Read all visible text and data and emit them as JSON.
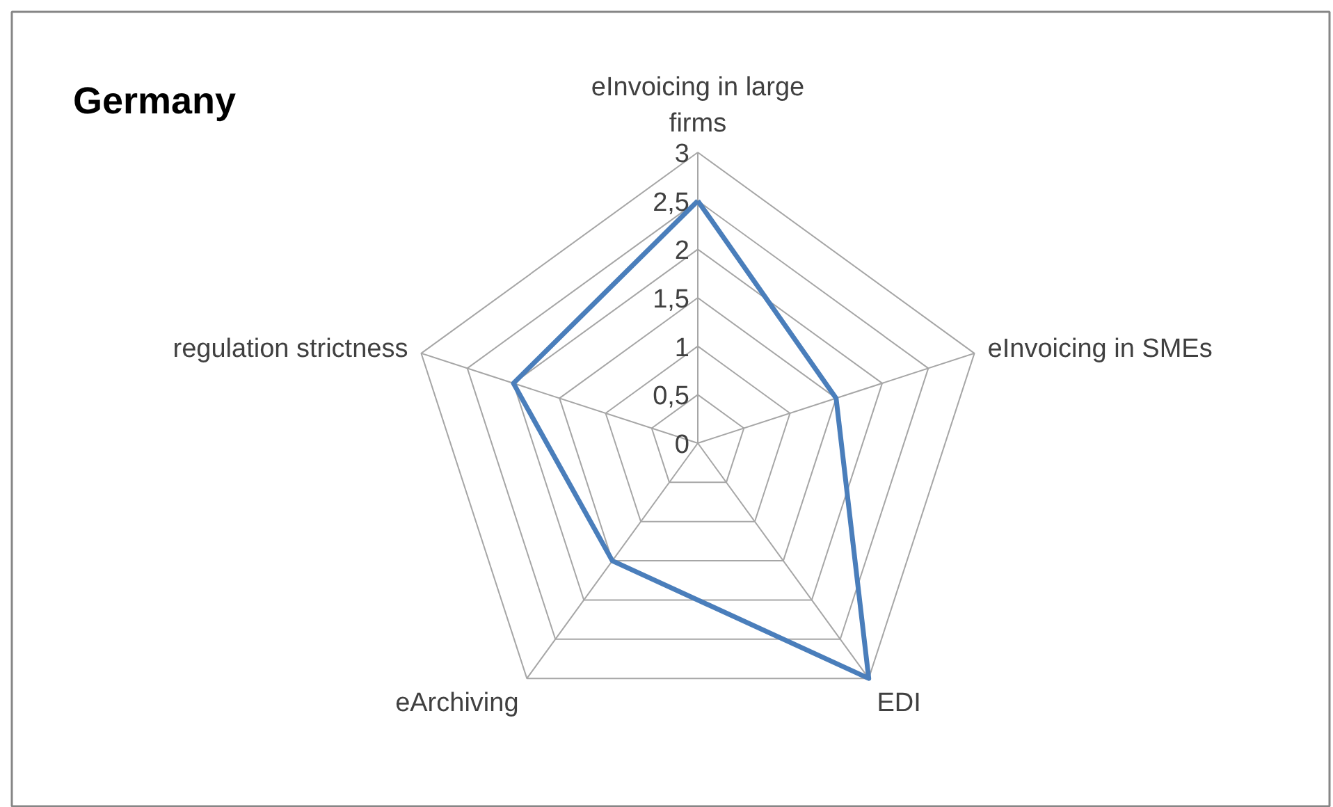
{
  "chart_data": {
    "type": "radar",
    "title": "Germany",
    "categories": [
      "eInvoicing in large firms",
      "eInvoicing in SMEs",
      "EDI",
      "eArchiving",
      "regulation strictness"
    ],
    "series": [
      {
        "color": "#4a7ebb",
        "values": [
          2.5,
          1.5,
          3,
          1.5,
          2
        ]
      }
    ],
    "ylim": [
      0,
      3
    ],
    "yticks": [
      0,
      {
        "value": 0.5,
        "label": "0,5"
      },
      1,
      {
        "value": 1.5,
        "label": "1,5"
      },
      2,
      {
        "value": 2.5,
        "label": "2,5"
      },
      3
    ],
    "grid": true
  }
}
